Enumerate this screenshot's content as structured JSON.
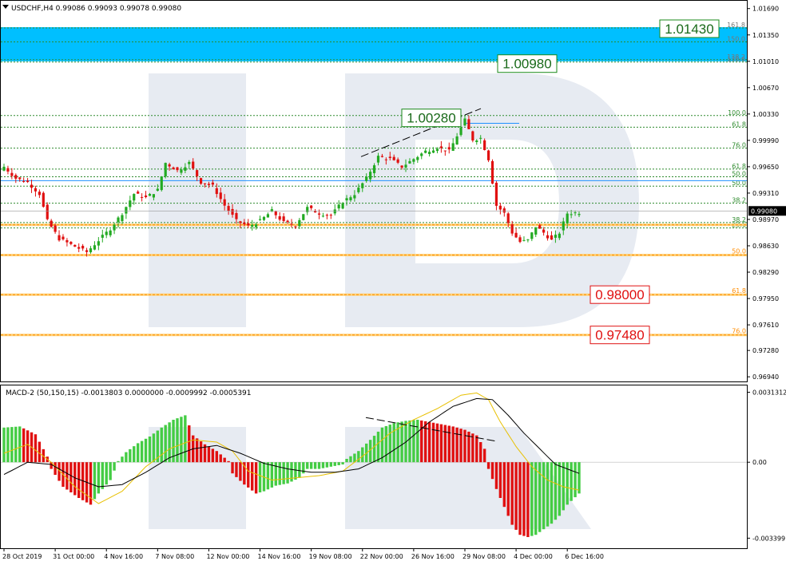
{
  "chart_data": [
    {
      "type": "candlestick",
      "header": "USDCHF,H4  0.99086 0.99093 0.99078 0.99080",
      "y_ticks": [
        "1.01690",
        "1.01350",
        "1.01010",
        "1.00670",
        "1.00330",
        "0.99990",
        "0.99650",
        "0.99310",
        "0.98970",
        "0.98630",
        "0.98290",
        "0.97950",
        "0.97610",
        "0.97280",
        "0.96940"
      ],
      "y_tick_values": [
        1.0169,
        1.0135,
        1.0101,
        1.0067,
        1.0033,
        0.9999,
        0.9965,
        0.9931,
        0.9897,
        0.9863,
        0.9829,
        0.9795,
        0.9761,
        0.9728,
        0.9694
      ],
      "ylim": [
        0.9688,
        1.0178
      ],
      "current_price": "0.99080",
      "current_price_value": 0.9908,
      "x_ticks": [
        "28 Oct 2019",
        "31 Oct 00:00",
        "4 Nov 16:00",
        "7 Nov 08:00",
        "12 Nov 00:00",
        "14 Nov 16:00",
        "19 Nov 08:00",
        "22 Nov 00:00",
        "26 Nov 16:00",
        "29 Nov 08:00",
        "4 Dec 00:00",
        "6 Dec 16:00"
      ],
      "close_path": [
        {
          "i": 0,
          "p": 0.9965
        },
        {
          "i": 3,
          "p": 0.995
        },
        {
          "i": 6,
          "p": 0.9945
        },
        {
          "i": 9,
          "p": 0.993
        },
        {
          "i": 11,
          "p": 0.9895
        },
        {
          "i": 14,
          "p": 0.9872
        },
        {
          "i": 18,
          "p": 0.9862
        },
        {
          "i": 21,
          "p": 0.9855
        },
        {
          "i": 24,
          "p": 0.987
        },
        {
          "i": 27,
          "p": 0.9885
        },
        {
          "i": 30,
          "p": 0.9905
        },
        {
          "i": 33,
          "p": 0.993
        },
        {
          "i": 36,
          "p": 0.9925
        },
        {
          "i": 39,
          "p": 0.9935
        },
        {
          "i": 41,
          "p": 0.997
        },
        {
          "i": 44,
          "p": 0.996
        },
        {
          "i": 47,
          "p": 0.997
        },
        {
          "i": 50,
          "p": 0.9945
        },
        {
          "i": 53,
          "p": 0.994
        },
        {
          "i": 56,
          "p": 0.9915
        },
        {
          "i": 59,
          "p": 0.9895
        },
        {
          "i": 62,
          "p": 0.9888
        },
        {
          "i": 65,
          "p": 0.9895
        },
        {
          "i": 68,
          "p": 0.9908
        },
        {
          "i": 71,
          "p": 0.9893
        },
        {
          "i": 74,
          "p": 0.989
        },
        {
          "i": 77,
          "p": 0.9912
        },
        {
          "i": 80,
          "p": 0.9905
        },
        {
          "i": 83,
          "p": 0.9902
        },
        {
          "i": 86,
          "p": 0.992
        },
        {
          "i": 89,
          "p": 0.993
        },
        {
          "i": 92,
          "p": 0.995
        },
        {
          "i": 95,
          "p": 0.9978
        },
        {
          "i": 98,
          "p": 0.9975
        },
        {
          "i": 101,
          "p": 0.9965
        },
        {
          "i": 104,
          "p": 0.9975
        },
        {
          "i": 107,
          "p": 0.9985
        },
        {
          "i": 110,
          "p": 0.999
        },
        {
          "i": 113,
          "p": 0.9985
        },
        {
          "i": 115,
          "p": 1.0005
        },
        {
          "i": 117,
          "p": 1.0025
        },
        {
          "i": 119,
          "p": 1.0
        },
        {
          "i": 121,
          "p": 1.0002
        },
        {
          "i": 123,
          "p": 0.9975
        },
        {
          "i": 125,
          "p": 0.9915
        },
        {
          "i": 127,
          "p": 0.9905
        },
        {
          "i": 129,
          "p": 0.988
        },
        {
          "i": 131,
          "p": 0.9868
        },
        {
          "i": 133,
          "p": 0.987
        },
        {
          "i": 135,
          "p": 0.9888
        },
        {
          "i": 137,
          "p": 0.988
        },
        {
          "i": 139,
          "p": 0.987
        },
        {
          "i": 141,
          "p": 0.988
        },
        {
          "i": 143,
          "p": 0.9905
        },
        {
          "i": 146,
          "p": 0.9906
        }
      ],
      "candle_count": 147,
      "upper_zone": [
        1.0101,
        1.0145
      ],
      "fib_upper": [
        {
          "label": "161.8",
          "value": 1.0144
        },
        {
          "label": "150.0",
          "value": 1.0126
        },
        {
          "label": "138.2",
          "value": 1.0103
        },
        {
          "label": "130.0",
          "value": 1.01
        }
      ],
      "fib_green": [
        {
          "label": "100.0",
          "value": 1.0031
        },
        {
          "label": "61.8",
          "value": 1.0016
        },
        {
          "label": "76.0",
          "value": 0.9989
        },
        {
          "label": "61.8",
          "value": 0.9962
        },
        {
          "label": "50.0",
          "value": 0.9952
        },
        {
          "label": "50.0",
          "value": 0.994
        },
        {
          "label": "38.2",
          "value": 0.9918
        },
        {
          "label": "38.2",
          "value": 0.9893
        },
        {
          "label": "23.6",
          "value": 0.9886
        }
      ],
      "fib_orange": [
        {
          "label": "",
          "value": 0.989
        },
        {
          "label": "50.0",
          "value": 0.9851
        },
        {
          "label": "61.8",
          "value": 0.98
        },
        {
          "label": "76.0",
          "value": 0.9748
        }
      ],
      "blue_level": 0.9947,
      "targets_green": [
        {
          "label": "1.01430",
          "value": 1.0143
        },
        {
          "label": "1.00980",
          "value": 1.0098
        },
        {
          "label": "1.00280",
          "value": 1.0028
        }
      ],
      "targets_red": [
        {
          "label": "0.98000",
          "value": 0.98
        },
        {
          "label": "0.97480",
          "value": 0.9748
        }
      ],
      "colors": {
        "bull": "#22aa22",
        "bear": "#e01010",
        "zone": "#00bfff",
        "fib_green": "#2e8b2e",
        "fib_orange": "#ff8c00",
        "blue": "#1e90ff",
        "target_red": "#e01010",
        "target_green": "#1a8a1a"
      }
    },
    {
      "type": "histogram",
      "header": "MACD-2 (50,150,15) -0.0013803 0.0000000 -0.0009992 -0.0005391",
      "y_ticks": [
        "0.0031312",
        "0.00",
        "-0.003399"
      ],
      "y_tick_values": [
        0.0031312,
        0.0,
        -0.003399
      ],
      "ylim": [
        -0.00385,
        0.0034
      ],
      "bar_path": [
        {
          "i": 0,
          "v": 0.00155
        },
        {
          "i": 4,
          "v": 0.0016
        },
        {
          "i": 8,
          "v": 0.00125
        },
        {
          "i": 11,
          "v": 0.00025
        },
        {
          "i": 12,
          "v": -0.0003
        },
        {
          "i": 15,
          "v": -0.0011
        },
        {
          "i": 19,
          "v": -0.0016
        },
        {
          "i": 22,
          "v": -0.0019
        },
        {
          "i": 24,
          "v": -0.0014
        },
        {
          "i": 27,
          "v": -0.0008
        },
        {
          "i": 29,
          "v": 5e-05
        },
        {
          "i": 31,
          "v": 0.00045
        },
        {
          "i": 34,
          "v": 0.00085
        },
        {
          "i": 37,
          "v": 0.00115
        },
        {
          "i": 40,
          "v": 0.00155
        },
        {
          "i": 43,
          "v": 0.0019
        },
        {
          "i": 46,
          "v": 0.0021
        },
        {
          "i": 48,
          "v": 0.0012
        },
        {
          "i": 51,
          "v": 0.0008
        },
        {
          "i": 54,
          "v": 0.0005
        },
        {
          "i": 57,
          "v": 5e-05
        },
        {
          "i": 58,
          "v": -0.0005
        },
        {
          "i": 61,
          "v": -0.001
        },
        {
          "i": 64,
          "v": -0.0014
        },
        {
          "i": 66,
          "v": -0.0013
        },
        {
          "i": 69,
          "v": -0.00105
        },
        {
          "i": 72,
          "v": -0.00095
        },
        {
          "i": 75,
          "v": -0.0007
        },
        {
          "i": 77,
          "v": -0.0003
        },
        {
          "i": 80,
          "v": -0.0003
        },
        {
          "i": 83,
          "v": -0.0002
        },
        {
          "i": 86,
          "v": -0.0001
        },
        {
          "i": 87,
          "v": 0.00015
        },
        {
          "i": 90,
          "v": 0.0005
        },
        {
          "i": 93,
          "v": 0.001
        },
        {
          "i": 96,
          "v": 0.00155
        },
        {
          "i": 99,
          "v": 0.00175
        },
        {
          "i": 102,
          "v": 0.00185
        },
        {
          "i": 105,
          "v": 0.0019
        },
        {
          "i": 108,
          "v": 0.0018
        },
        {
          "i": 111,
          "v": 0.0017
        },
        {
          "i": 114,
          "v": 0.0016
        },
        {
          "i": 117,
          "v": 0.00145
        },
        {
          "i": 120,
          "v": 0.0012
        },
        {
          "i": 122,
          "v": 0.0006
        },
        {
          "i": 123,
          "v": -0.0003
        },
        {
          "i": 125,
          "v": -0.0012
        },
        {
          "i": 127,
          "v": -0.002
        },
        {
          "i": 129,
          "v": -0.0028
        },
        {
          "i": 131,
          "v": -0.00325
        },
        {
          "i": 133,
          "v": -0.00335
        },
        {
          "i": 135,
          "v": -0.00325
        },
        {
          "i": 137,
          "v": -0.003
        },
        {
          "i": 139,
          "v": -0.00275
        },
        {
          "i": 141,
          "v": -0.0024
        },
        {
          "i": 143,
          "v": -0.0019
        },
        {
          "i": 146,
          "v": -0.0014
        }
      ],
      "signal_black": [
        {
          "i": 0,
          "v": -0.00055
        },
        {
          "i": 6,
          "v": 0.0
        },
        {
          "i": 12,
          "v": -0.0001
        },
        {
          "i": 18,
          "v": -0.0007
        },
        {
          "i": 24,
          "v": -0.0011
        },
        {
          "i": 30,
          "v": -0.001
        },
        {
          "i": 36,
          "v": -0.00045
        },
        {
          "i": 42,
          "v": 0.0002
        },
        {
          "i": 48,
          "v": 0.0006
        },
        {
          "i": 54,
          "v": 0.00075
        },
        {
          "i": 60,
          "v": 0.0004
        },
        {
          "i": 66,
          "v": -5e-05
        },
        {
          "i": 72,
          "v": -0.0003
        },
        {
          "i": 78,
          "v": -0.00045
        },
        {
          "i": 84,
          "v": -0.00045
        },
        {
          "i": 90,
          "v": -0.0003
        },
        {
          "i": 96,
          "v": 0.0002
        },
        {
          "i": 102,
          "v": 0.0009
        },
        {
          "i": 108,
          "v": 0.0018
        },
        {
          "i": 114,
          "v": 0.0025
        },
        {
          "i": 120,
          "v": 0.00285
        },
        {
          "i": 124,
          "v": 0.0028
        },
        {
          "i": 128,
          "v": 0.0021
        },
        {
          "i": 132,
          "v": 0.0013
        },
        {
          "i": 136,
          "v": 0.0006
        },
        {
          "i": 140,
          "v": -0.0001
        },
        {
          "i": 146,
          "v": -0.0005
        }
      ],
      "signal_yellow": [
        {
          "i": 0,
          "v": 0.0004
        },
        {
          "i": 6,
          "v": 0.0008
        },
        {
          "i": 12,
          "v": 0.0
        },
        {
          "i": 18,
          "v": -0.0011
        },
        {
          "i": 24,
          "v": -0.00185
        },
        {
          "i": 30,
          "v": -0.0013
        },
        {
          "i": 36,
          "v": -0.0002
        },
        {
          "i": 42,
          "v": 0.0006
        },
        {
          "i": 48,
          "v": 0.001
        },
        {
          "i": 54,
          "v": 0.0009
        },
        {
          "i": 58,
          "v": 0.0005
        },
        {
          "i": 62,
          "v": -0.0004
        },
        {
          "i": 68,
          "v": -0.0008
        },
        {
          "i": 74,
          "v": -0.0007
        },
        {
          "i": 80,
          "v": -0.0006
        },
        {
          "i": 86,
          "v": -0.0004
        },
        {
          "i": 92,
          "v": 0.0004
        },
        {
          "i": 98,
          "v": 0.0013
        },
        {
          "i": 104,
          "v": 0.0019
        },
        {
          "i": 110,
          "v": 0.0024
        },
        {
          "i": 116,
          "v": 0.003
        },
        {
          "i": 120,
          "v": 0.0031
        },
        {
          "i": 123,
          "v": 0.0028
        },
        {
          "i": 126,
          "v": 0.0018
        },
        {
          "i": 130,
          "v": 0.0007
        },
        {
          "i": 134,
          "v": -0.0002
        },
        {
          "i": 138,
          "v": -0.0008
        },
        {
          "i": 142,
          "v": -0.0011
        },
        {
          "i": 146,
          "v": -0.00125
        }
      ],
      "colors": {
        "up": "#44cc44",
        "down": "#e01010",
        "signal_black": "#000000",
        "signal_yellow": "#e8c000"
      }
    }
  ]
}
